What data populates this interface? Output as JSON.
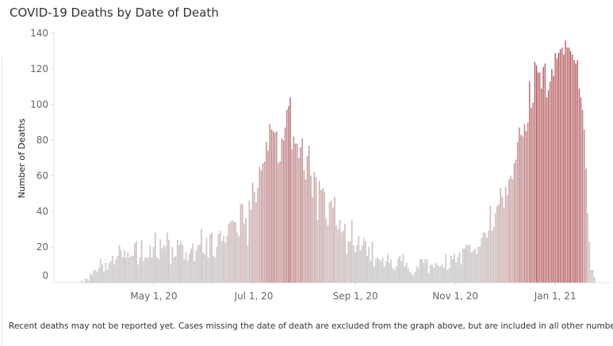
{
  "title": "COVID-19 Deaths by Date of Death",
  "footnote": "Recent deaths may not be reported yet.  Cases missing the date of death are excluded from the graph above, but are included in all other numbers.",
  "chart_data": {
    "type": "bar",
    "title": "COVID-19 Deaths by Date of Death",
    "xlabel": "",
    "ylabel": "Number of Deaths",
    "ylim": [
      0,
      140
    ],
    "yticks": [
      "0",
      "20",
      "40",
      "60",
      "80",
      "100",
      "120",
      "140"
    ],
    "xticks": [
      {
        "date": "2020-05-01",
        "label": "May 1, 20"
      },
      {
        "date": "2020-07-01",
        "label": "Jul 1, 20"
      },
      {
        "date": "2020-09-01",
        "label": "Sep 1, 20"
      },
      {
        "date": "2020-11-01",
        "label": "Nov 1, 20"
      },
      {
        "date": "2021-01-01",
        "label": "Jan 1, 21"
      }
    ],
    "first_date": "2020-03-18",
    "last_date": "2021-01-25",
    "grid": false,
    "colors": {
      "low": "#d6d6d6",
      "mid": "#e2b5b5",
      "high": "#c0282e",
      "outline": "#c9c9c9"
    },
    "values": [
      1,
      0,
      2,
      2,
      1,
      5,
      4,
      7,
      7,
      6,
      8,
      13,
      10,
      6,
      11,
      7,
      11,
      12,
      15,
      10,
      13,
      15,
      21,
      18,
      14,
      18,
      14,
      17,
      14,
      15,
      15,
      22,
      23,
      10,
      14,
      24,
      12,
      14,
      14,
      14,
      21,
      14,
      20,
      28,
      14,
      13,
      24,
      19,
      21,
      20,
      28,
      24,
      10,
      20,
      14,
      15,
      24,
      21,
      23,
      21,
      13,
      17,
      12,
      16,
      19,
      22,
      12,
      18,
      21,
      21,
      30,
      17,
      16,
      25,
      14,
      27,
      28,
      15,
      14,
      20,
      27,
      29,
      23,
      26,
      22,
      26,
      33,
      34,
      35,
      34,
      34,
      28,
      26,
      44,
      44,
      33,
      36,
      21,
      46,
      41,
      56,
      51,
      45,
      53,
      65,
      63,
      67,
      68,
      79,
      74,
      89,
      86,
      85,
      84,
      85,
      67,
      68,
      81,
      80,
      87,
      97,
      99,
      104,
      75,
      82,
      78,
      78,
      70,
      76,
      81,
      63,
      58,
      71,
      77,
      60,
      48,
      62,
      59,
      35,
      57,
      52,
      53,
      51,
      36,
      32,
      45,
      46,
      42,
      48,
      32,
      30,
      35,
      28,
      29,
      33,
      16,
      23,
      23,
      35,
      21,
      17,
      21,
      26,
      18,
      21,
      25,
      23,
      15,
      20,
      12,
      23,
      9,
      13,
      14,
      13,
      12,
      14,
      9,
      12,
      16,
      11,
      13,
      8,
      7,
      9,
      13,
      15,
      12,
      16,
      9,
      11,
      8,
      6,
      5,
      4,
      6,
      9,
      8,
      13,
      13,
      11,
      13,
      13,
      5,
      10,
      10,
      8,
      11,
      10,
      9,
      9,
      10,
      8,
      16,
      7,
      8,
      15,
      13,
      16,
      11,
      14,
      17,
      10,
      19,
      19,
      21,
      21,
      21,
      17,
      18,
      19,
      16,
      20,
      20,
      25,
      28,
      28,
      25,
      29,
      43,
      29,
      31,
      39,
      43,
      44,
      53,
      48,
      42,
      54,
      49,
      58,
      60,
      58,
      67,
      69,
      79,
      87,
      83,
      82,
      89,
      85,
      90,
      113,
      98,
      101,
      124,
      122,
      118,
      118,
      109,
      121,
      123,
      104,
      108,
      113,
      120,
      116,
      129,
      126,
      129,
      131,
      132,
      128,
      136,
      132,
      132,
      130,
      128,
      125,
      123,
      125,
      109,
      104,
      97,
      86,
      64,
      39,
      23,
      7,
      7,
      3
    ]
  }
}
